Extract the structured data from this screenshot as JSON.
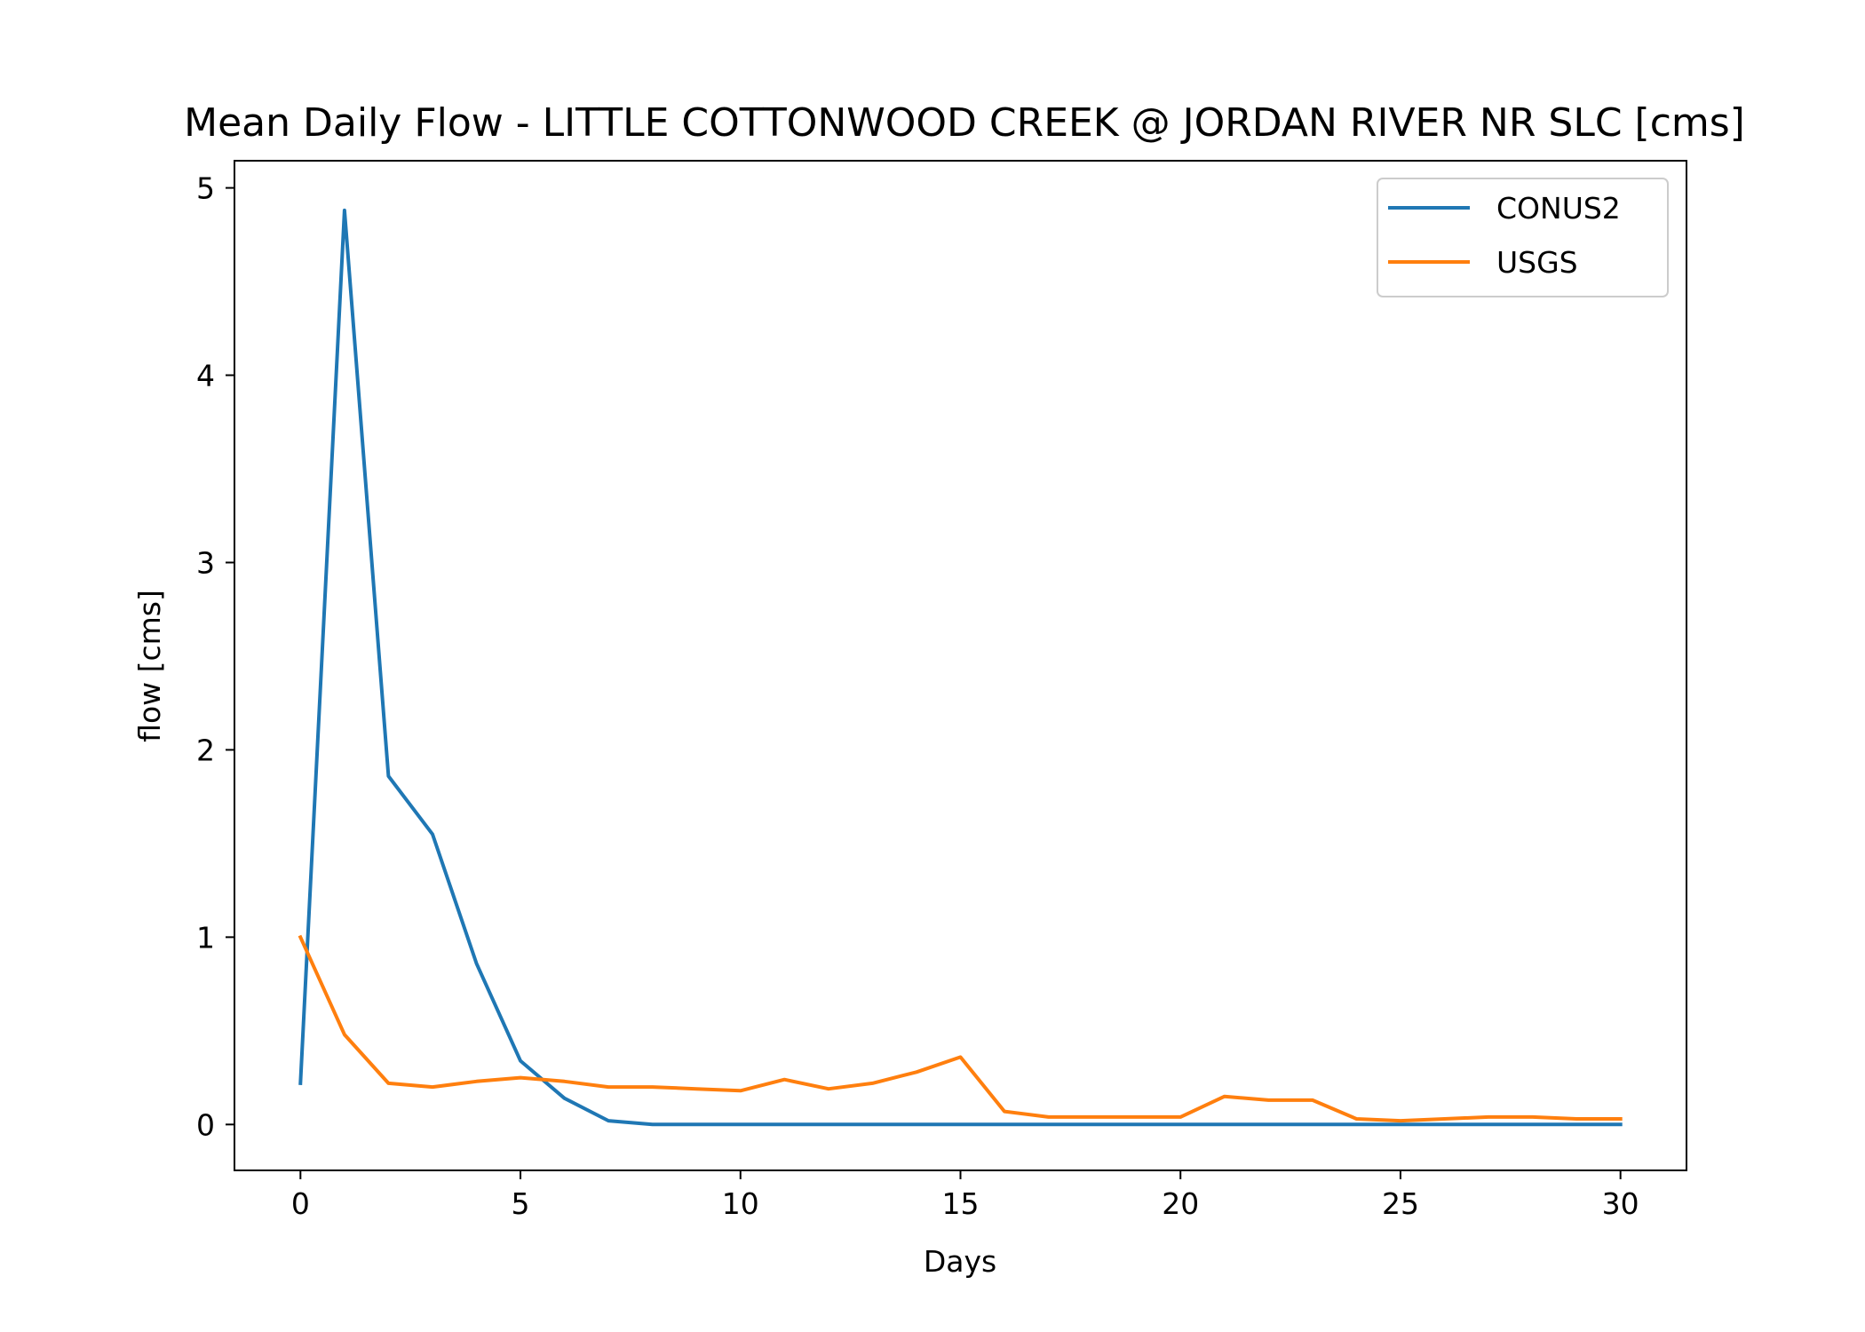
{
  "chart_data": {
    "type": "line",
    "title": "Mean Daily Flow - LITTLE COTTONWOOD CREEK @ JORDAN RIVER NR SLC [cms]",
    "xlabel": "Days",
    "ylabel": "flow [cms]",
    "xlim": [
      -1.5,
      31.5
    ],
    "ylim": [
      -0.245,
      5.145
    ],
    "xticks": [
      0,
      5,
      10,
      15,
      20,
      25,
      30
    ],
    "yticks": [
      0,
      1,
      2,
      3,
      4,
      5
    ],
    "grid": false,
    "legend_position": "top-right",
    "x": [
      0,
      1,
      2,
      3,
      4,
      5,
      6,
      7,
      8,
      9,
      10,
      11,
      12,
      13,
      14,
      15,
      16,
      17,
      18,
      19,
      20,
      21,
      22,
      23,
      24,
      25,
      26,
      27,
      28,
      29,
      30
    ],
    "series": [
      {
        "name": "CONUS2",
        "color": "#1f77b4",
        "values": [
          0.22,
          4.88,
          1.86,
          1.55,
          0.86,
          0.34,
          0.14,
          0.02,
          0.0,
          0.0,
          0.0,
          0.0,
          0.0,
          0.0,
          0.0,
          0.0,
          0.0,
          0.0,
          0.0,
          0.0,
          0.0,
          0.0,
          0.0,
          0.0,
          0.0,
          0.0,
          0.0,
          0.0,
          0.0,
          0.0,
          0.0
        ]
      },
      {
        "name": "USGS",
        "color": "#ff7f0e",
        "values": [
          1.0,
          0.48,
          0.22,
          0.2,
          0.23,
          0.25,
          0.23,
          0.2,
          0.2,
          0.19,
          0.18,
          0.24,
          0.19,
          0.22,
          0.28,
          0.36,
          0.07,
          0.04,
          0.04,
          0.04,
          0.04,
          0.15,
          0.13,
          0.13,
          0.03,
          0.02,
          0.03,
          0.04,
          0.04,
          0.03,
          0.03
        ]
      }
    ]
  }
}
